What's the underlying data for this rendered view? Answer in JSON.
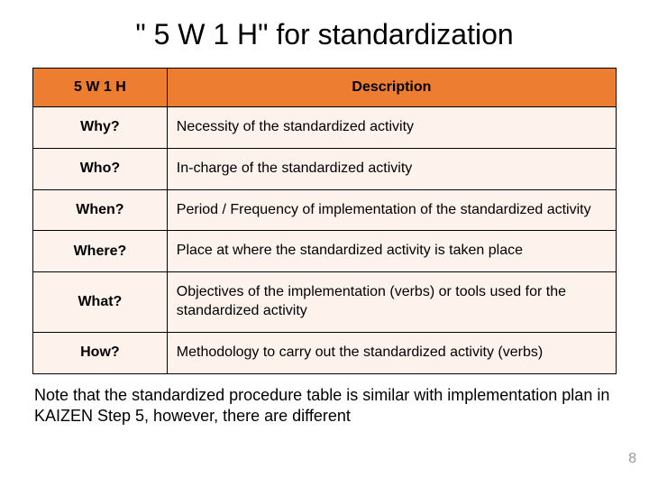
{
  "title": "\" 5 W 1 H\" for standardization",
  "table": {
    "header_bg": "#ed7d31",
    "row_bg": "#fdf2ec",
    "columns": [
      "5 W 1 H",
      "Description"
    ],
    "rows": [
      {
        "label": "Why?",
        "desc": "Necessity of the standardized activity"
      },
      {
        "label": "Who?",
        "desc": "In-charge of the standardized activity"
      },
      {
        "label": "When?",
        "desc": "Period / Frequency of implementation of the standardized activity"
      },
      {
        "label": "Where?",
        "desc": "Place at where the standardized activity is taken place"
      },
      {
        "label": "What?",
        "desc": "Objectives of the implementation (verbs) or tools used for the standardized activity"
      },
      {
        "label": "How?",
        "desc": "Methodology to carry out the standardized activity (verbs)"
      }
    ]
  },
  "note": "Note that the standardized procedure table is similar with implementation plan in KAIZEN Step 5, however, there are different",
  "page_number": "8"
}
